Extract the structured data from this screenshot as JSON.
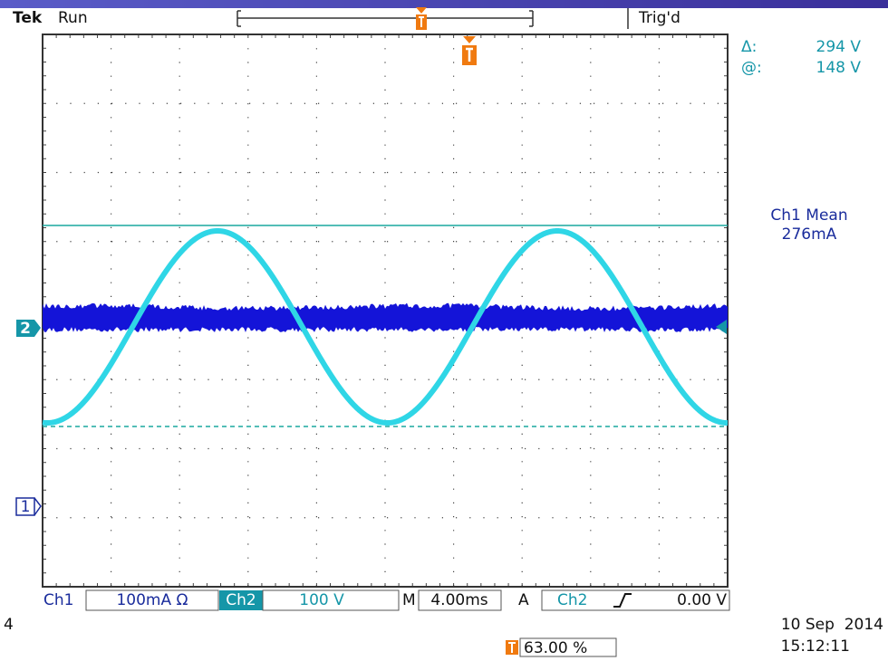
{
  "header": {
    "brand": "Tek",
    "status": "Run",
    "trigger_status": "Trig'd"
  },
  "cursor_readout": {
    "delta_label": "Δ:",
    "delta": "294 V",
    "at_label": "@:",
    "at": "148 V"
  },
  "measurement": {
    "label": "Ch1 Mean",
    "value": "276mA"
  },
  "channel_markers": {
    "ch2": "2",
    "ch1": "1"
  },
  "settings": {
    "ch1_label": "Ch1",
    "ch1_scale": "100mA Ω",
    "ch2_label": "Ch2",
    "ch2_scale": "100 V",
    "timebase_label": "M",
    "timebase": "4.00ms",
    "trigger_label": "A",
    "trigger_source": "Ch2",
    "trigger_level": "0.00 V"
  },
  "footer": {
    "page": "4",
    "date": "10 Sep  2014",
    "time": "15:12:11",
    "trigger_position": "63.00 %"
  }
}
